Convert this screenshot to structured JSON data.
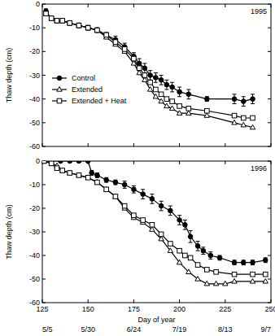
{
  "chart_data": [
    {
      "type": "line",
      "title": "1995",
      "ylabel": "Thaw depth (cm)",
      "xlim": [
        125,
        250
      ],
      "xticks": [
        125,
        150,
        175,
        200,
        225,
        250
      ],
      "ylim": [
        -60,
        0
      ],
      "yticks": [
        -60,
        -50,
        -40,
        -30,
        -20,
        -10,
        0
      ],
      "tick_labels": "y",
      "legend": "left",
      "series": [
        {
          "name": "Control",
          "color": "#000000",
          "marker": "circle",
          "x": [
            127,
            130,
            133,
            136,
            140,
            145,
            150,
            155,
            160,
            165,
            170,
            175,
            178,
            181,
            184,
            187,
            190,
            193,
            196,
            200,
            205,
            215,
            230,
            235,
            240
          ],
          "values": [
            -3,
            -6,
            -7,
            -7,
            -8,
            -9,
            -10,
            -11,
            -13,
            -15,
            -18,
            -22,
            -25,
            -27,
            -30,
            -31,
            -32,
            -34,
            -35,
            -37,
            -38,
            -40,
            -40,
            -41,
            -40
          ],
          "errors": [
            1,
            1,
            1,
            1,
            1,
            1,
            1,
            1,
            1,
            1.5,
            1.5,
            1.5,
            2,
            2,
            2,
            2,
            2,
            2,
            2,
            2,
            2,
            1,
            2,
            2,
            2
          ]
        },
        {
          "name": "Extended",
          "color": "#000000",
          "marker": "triangle",
          "x": [
            127,
            130,
            133,
            136,
            140,
            145,
            150,
            155,
            160,
            165,
            170,
            175,
            178,
            181,
            184,
            187,
            190,
            193,
            196,
            200,
            205,
            215,
            230,
            235,
            240
          ],
          "values": [
            -4,
            -6,
            -7,
            -7,
            -8,
            -9,
            -10,
            -11,
            -14,
            -17,
            -20,
            -25,
            -29,
            -32,
            -36,
            -39,
            -41,
            -43,
            -44,
            -46,
            -46,
            -47,
            -50,
            -51,
            -52
          ]
        },
        {
          "name": "Extended + Heat",
          "color": "#000000",
          "marker": "square",
          "x": [
            127,
            130,
            133,
            136,
            140,
            145,
            150,
            155,
            160,
            165,
            170,
            175,
            178,
            181,
            184,
            187,
            190,
            193,
            196,
            200,
            205,
            215,
            230,
            235,
            240
          ],
          "values": [
            -4,
            -6,
            -7,
            -7,
            -8,
            -9,
            -10,
            -11,
            -13,
            -16,
            -19,
            -23,
            -27,
            -30,
            -33,
            -36,
            -38,
            -40,
            -41,
            -43,
            -44,
            -45,
            -47,
            -48,
            -48
          ]
        }
      ]
    },
    {
      "type": "line",
      "title": "1996",
      "ylabel": "Thaw depth (cm)",
      "xlabel": "Day of year",
      "xlim": [
        125,
        250
      ],
      "xticks": [
        125,
        150,
        175,
        200,
        225,
        250
      ],
      "date_labels": [
        "5/5",
        "5/30",
        "6/24",
        "7/19",
        "8/13",
        "9/7"
      ],
      "ylim": [
        -60,
        0
      ],
      "yticks": [
        -60,
        -50,
        -40,
        -30,
        -20,
        -10,
        0
      ],
      "series": [
        {
          "name": "Control",
          "color": "#000000",
          "marker": "circle",
          "x": [
            126,
            130,
            135,
            140,
            145,
            150,
            152,
            155,
            160,
            165,
            170,
            175,
            180,
            185,
            190,
            195,
            200,
            203,
            206,
            210,
            213,
            217,
            222,
            230,
            235,
            240,
            247
          ],
          "values": [
            0,
            0,
            0,
            0,
            0,
            0,
            -5,
            -6,
            -8,
            -9,
            -10,
            -12,
            -14,
            -16,
            -19,
            -21,
            -25,
            -27,
            -32,
            -36,
            -38,
            -40,
            -41,
            -43,
            -43,
            -43,
            -42
          ],
          "errors": [
            0.5,
            0.5,
            0.5,
            0.5,
            0.5,
            0.5,
            1,
            1,
            1,
            1,
            1.5,
            1.5,
            2,
            2,
            2,
            2,
            2,
            2,
            2.5,
            2,
            1.5,
            1.5,
            1,
            1,
            1,
            1,
            1
          ]
        },
        {
          "name": "Extended",
          "color": "#000000",
          "marker": "triangle",
          "x": [
            126,
            130,
            133,
            136,
            140,
            145,
            150,
            155,
            160,
            165,
            170,
            175,
            180,
            185,
            190,
            195,
            200,
            205,
            210,
            215,
            220,
            225,
            230,
            240,
            247
          ],
          "values": [
            0,
            -1,
            -2,
            -4,
            -5,
            -6,
            -7,
            -9,
            -12,
            -15,
            -20,
            -24,
            -26,
            -29,
            -33,
            -38,
            -43,
            -47,
            -50,
            -52,
            -52,
            -52,
            -51,
            -51,
            -51
          ]
        },
        {
          "name": "Extended + Heat",
          "color": "#000000",
          "marker": "square",
          "x": [
            126,
            130,
            133,
            136,
            140,
            145,
            150,
            155,
            160,
            165,
            170,
            175,
            180,
            185,
            190,
            195,
            200,
            203,
            206,
            210,
            215,
            220,
            230,
            240,
            247
          ],
          "values": [
            0,
            -1,
            -3,
            -4,
            -5,
            -6,
            -7,
            -9,
            -12,
            -15,
            -19,
            -23,
            -25,
            -27,
            -31,
            -35,
            -38,
            -40,
            -41,
            -44,
            -46,
            -47,
            -48,
            -48,
            -48
          ]
        }
      ]
    }
  ]
}
